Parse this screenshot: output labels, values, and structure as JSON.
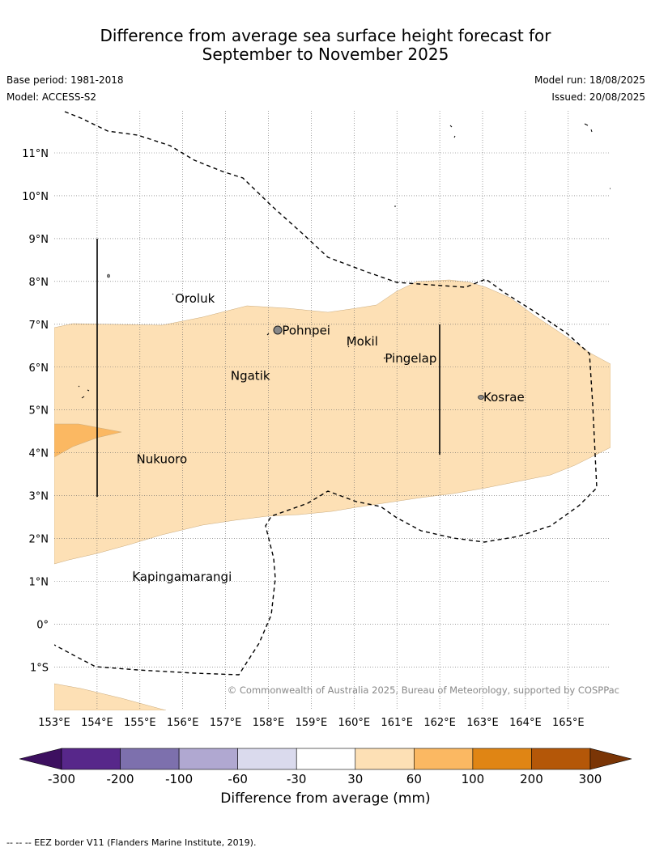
{
  "title_line1": "Difference from average sea surface height forecast for",
  "title_line2": "September to November 2025",
  "base_period": "Base period: 1981-2018",
  "model": "Model: ACCESS-S2",
  "model_run": "Model run: 18/08/2025",
  "issued": "Issued: 20/08/2025",
  "copyright": "© Commonwealth of Australia 2025, Bureau of Meteorology, supported by COSPPac",
  "map": {
    "lon_labels": [
      "153°E",
      "154°E",
      "155°E",
      "156°E",
      "157°E",
      "158°E",
      "159°E",
      "160°E",
      "161°E",
      "162°E",
      "163°E",
      "164°E",
      "165°E"
    ],
    "lat_labels": [
      "11°N",
      "10°N",
      "9°N",
      "8°N",
      "7°N",
      "6°N",
      "5°N",
      "4°N",
      "3°N",
      "2°N",
      "1°N",
      "0°",
      "1°S"
    ],
    "places": [
      {
        "name": "Oroluk",
        "lon": 155.8,
        "lat": 7.6
      },
      {
        "name": "Pohnpei",
        "lon": 158.3,
        "lat": 6.85
      },
      {
        "name": "Mokil",
        "lon": 159.8,
        "lat": 6.6
      },
      {
        "name": "Pingelap",
        "lon": 160.7,
        "lat": 6.2
      },
      {
        "name": "Ngatik",
        "lon": 157.1,
        "lat": 5.8
      },
      {
        "name": "Kosrae",
        "lon": 163.0,
        "lat": 5.3
      },
      {
        "name": "Nukuoro",
        "lon": 154.9,
        "lat": 3.85
      },
      {
        "name": "Kapingamarangi",
        "lon": 154.8,
        "lat": 1.1
      }
    ]
  },
  "legend": {
    "title": "Difference from average (mm)",
    "ticks": [
      "-300",
      "-200",
      "-100",
      "-60",
      "-30",
      "30",
      "60",
      "100",
      "200",
      "300"
    ],
    "colors": [
      "#3d1060",
      "#57278a",
      "#7d70ad",
      "#b0a8d1",
      "#dadaed",
      "#ffffff",
      "#fde0b5",
      "#fbb862",
      "#e08514",
      "#b45708",
      "#7a3506"
    ]
  },
  "footer": "-- -- -- EEZ border V11 (Flanders Marine Institute, 2019)."
}
